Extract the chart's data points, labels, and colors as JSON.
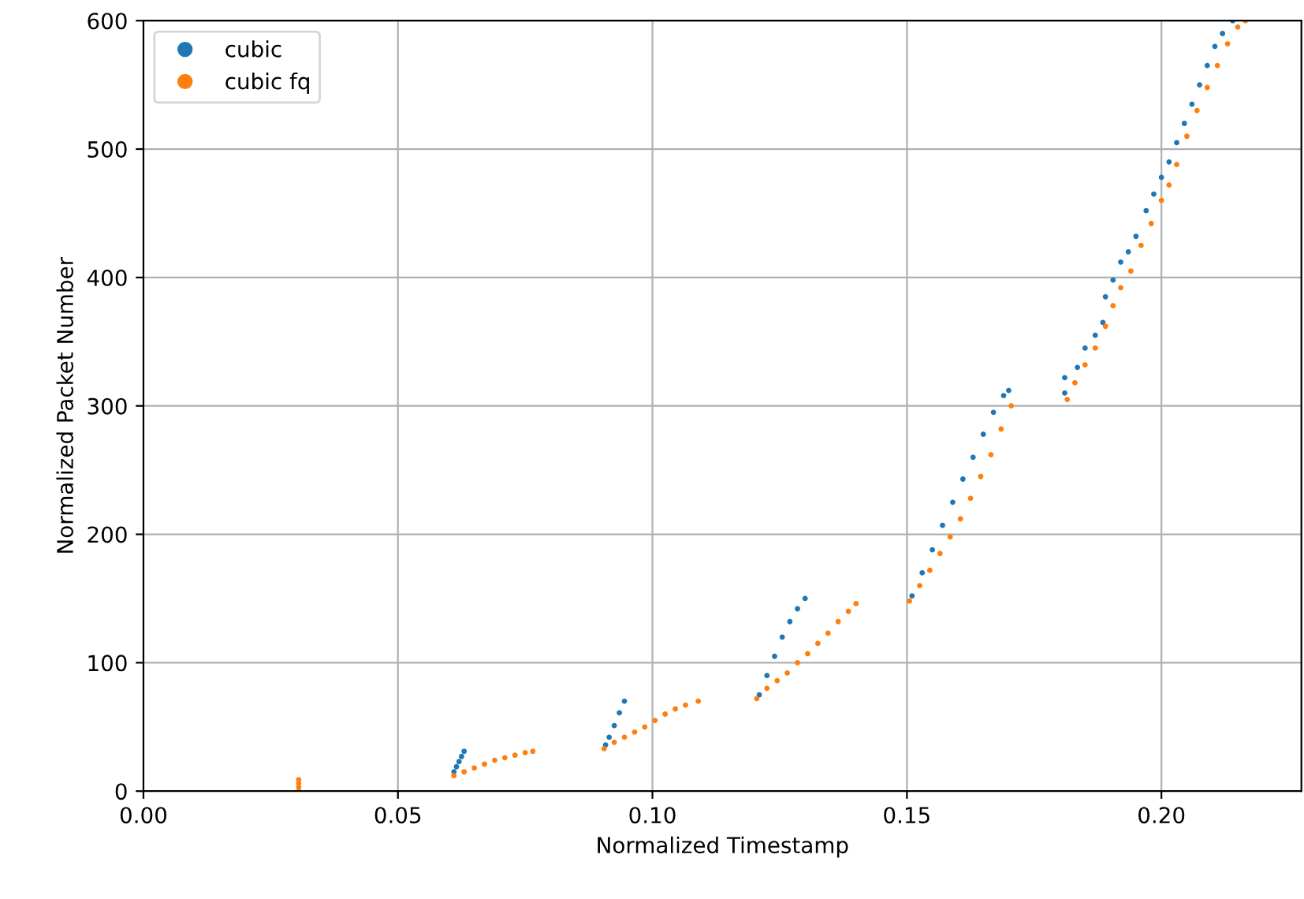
{
  "chart_data": {
    "type": "scatter",
    "xlabel": "Normalized Timestamp",
    "ylabel": "Normalized Packet Number",
    "xlim": [
      0,
      0.2275
    ],
    "ylim": [
      0,
      600
    ],
    "xticks": [
      {
        "value": 0,
        "label": "0.00"
      },
      {
        "value": 0.05,
        "label": "0.05"
      },
      {
        "value": 0.1,
        "label": "0.10"
      },
      {
        "value": 0.15,
        "label": "0.15"
      },
      {
        "value": 0.2,
        "label": "0.20"
      }
    ],
    "yticks": [
      0,
      100,
      200,
      300,
      400,
      500,
      600
    ],
    "grid": true,
    "legend": "top left",
    "marker": "circle",
    "series": [
      {
        "name": "cubic",
        "color": "#1f77b4",
        "x": [
          0.061,
          0.0615,
          0.062,
          0.0625,
          0.063,
          0.0908,
          0.0915,
          0.0925,
          0.0935,
          0.0945,
          0.121,
          0.1225,
          0.124,
          0.1255,
          0.127,
          0.1285,
          0.13,
          0.151,
          0.153,
          0.155,
          0.157,
          0.159,
          0.161,
          0.163,
          0.165,
          0.167,
          0.169,
          0.17,
          0.181,
          0.181,
          0.1835,
          0.185,
          0.187,
          0.1885,
          0.189,
          0.1905,
          0.192,
          0.1935,
          0.195,
          0.197,
          0.1985,
          0.2,
          0.2015,
          0.203,
          0.2045,
          0.206,
          0.2075,
          0.209,
          0.2105,
          0.212,
          0.214
        ],
        "values": [
          15,
          19,
          23,
          27,
          31,
          36,
          42,
          51,
          61,
          70,
          75,
          90,
          105,
          120,
          132,
          142,
          150,
          152,
          170,
          188,
          207,
          225,
          243,
          260,
          278,
          295,
          308,
          312,
          310,
          322,
          330,
          345,
          355,
          365,
          385,
          398,
          412,
          420,
          432,
          452,
          465,
          478,
          490,
          505,
          520,
          535,
          550,
          565,
          580,
          590,
          600
        ]
      },
      {
        "name": "cubic fq",
        "color": "#ff7f0e",
        "x": [
          0.0305,
          0.0305,
          0.0305,
          0.0305,
          0.061,
          0.063,
          0.065,
          0.067,
          0.069,
          0.071,
          0.073,
          0.075,
          0.0765,
          0.0905,
          0.0925,
          0.0945,
          0.0965,
          0.0985,
          0.1005,
          0.1025,
          0.1045,
          0.1065,
          0.109,
          0.1205,
          0.1225,
          0.1245,
          0.1265,
          0.1285,
          0.1305,
          0.1325,
          0.1345,
          0.1365,
          0.1385,
          0.14,
          0.1505,
          0.1525,
          0.1545,
          0.1565,
          0.1585,
          0.1605,
          0.1625,
          0.1645,
          0.1665,
          0.1685,
          0.1705,
          0.1815,
          0.183,
          0.185,
          0.187,
          0.189,
          0.1905,
          0.192,
          0.194,
          0.196,
          0.198,
          0.2,
          0.2015,
          0.203,
          0.205,
          0.207,
          0.209,
          0.211,
          0.213,
          0.215,
          0.2165
        ],
        "values": [
          0,
          3,
          6,
          9,
          12,
          15,
          18,
          21,
          24,
          26,
          28,
          30,
          31,
          33,
          38,
          42,
          46,
          50,
          55,
          60,
          64,
          67,
          70,
          72,
          80,
          86,
          92,
          100,
          107,
          115,
          123,
          132,
          140,
          146,
          148,
          160,
          172,
          185,
          198,
          212,
          228,
          245,
          262,
          282,
          300,
          305,
          318,
          332,
          345,
          362,
          378,
          392,
          405,
          425,
          442,
          460,
          472,
          488,
          510,
          530,
          548,
          565,
          582,
          595,
          600
        ]
      }
    ]
  }
}
